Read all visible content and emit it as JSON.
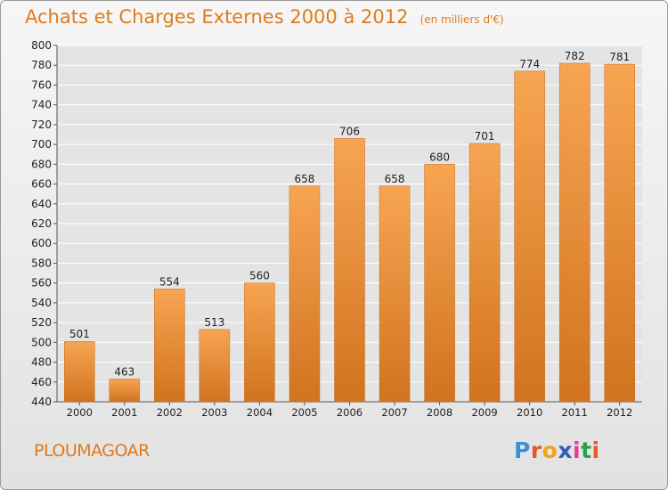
{
  "title": "Achats et Charges Externes 2000 à 2012",
  "subtitle": "(en milliers d'€)",
  "commune": "PLOUMAGOAR",
  "logo": {
    "text": "Proxiti",
    "letters": [
      {
        "ch": "P",
        "color": "#3a8fd6"
      },
      {
        "ch": "r",
        "color": "#e8562a"
      },
      {
        "ch": "o",
        "color": "#f2a21c"
      },
      {
        "ch": "x",
        "color": "#2c5fb8"
      },
      {
        "ch": "i",
        "color": "#e83a9a"
      },
      {
        "ch": "t",
        "color": "#2aa04a"
      },
      {
        "ch": "i",
        "color": "#e8562a"
      }
    ]
  },
  "colors": {
    "accent": "#e07a1a",
    "bar_top": "#f7a552",
    "bar_bottom": "#d1731f",
    "grid": "#ffffff",
    "text": "#222222"
  },
  "chart_data": {
    "type": "bar",
    "categories": [
      "2000",
      "2001",
      "2002",
      "2003",
      "2004",
      "2005",
      "2006",
      "2007",
      "2008",
      "2009",
      "2010",
      "2011",
      "2012"
    ],
    "values": [
      501,
      463,
      554,
      513,
      560,
      658,
      706,
      658,
      680,
      701,
      774,
      782,
      781
    ],
    "ylim": [
      440,
      800
    ],
    "yticks": [
      440,
      460,
      480,
      500,
      520,
      540,
      560,
      580,
      600,
      620,
      640,
      660,
      680,
      700,
      720,
      740,
      760,
      780,
      800
    ],
    "grid": true
  }
}
